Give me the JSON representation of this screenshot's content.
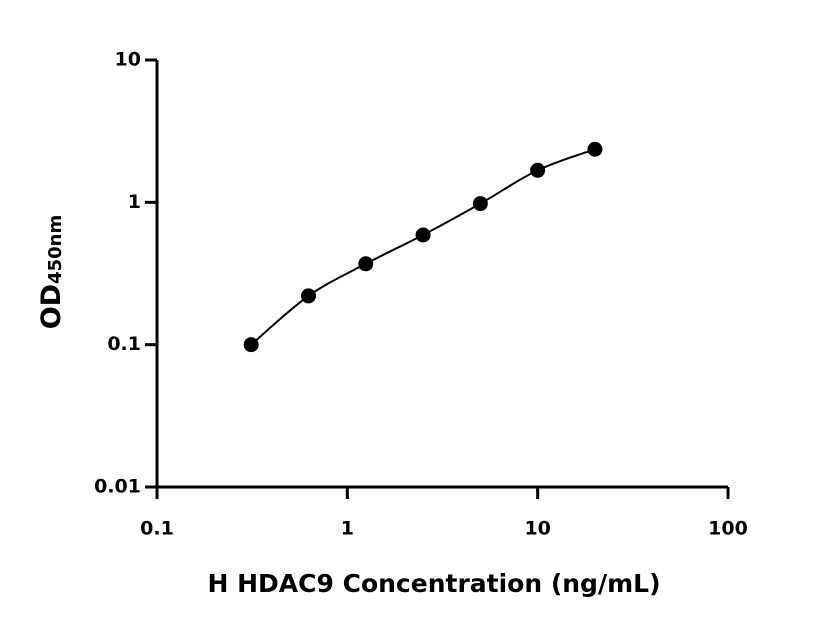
{
  "chart_data": {
    "type": "scatter",
    "xlabel": "H HDAC9 Concentration (ng/mL)",
    "ylabel": "OD",
    "ylabel_subscript": "450nm",
    "xscale": "log",
    "yscale": "log",
    "xlim": [
      0.1,
      100
    ],
    "xticks": [
      0.1,
      1,
      10,
      100
    ],
    "ylim": [
      0.01,
      10
    ],
    "yticks": [
      0.01,
      0.1,
      1,
      10
    ],
    "curve": true,
    "series": [
      {
        "color": "#000000",
        "x": [
          0.3125,
          0.625,
          1.25,
          2.5,
          5,
          10,
          20
        ],
        "values": [
          0.1,
          0.22,
          0.37,
          0.59,
          0.98,
          1.68,
          2.36
        ]
      }
    ]
  }
}
